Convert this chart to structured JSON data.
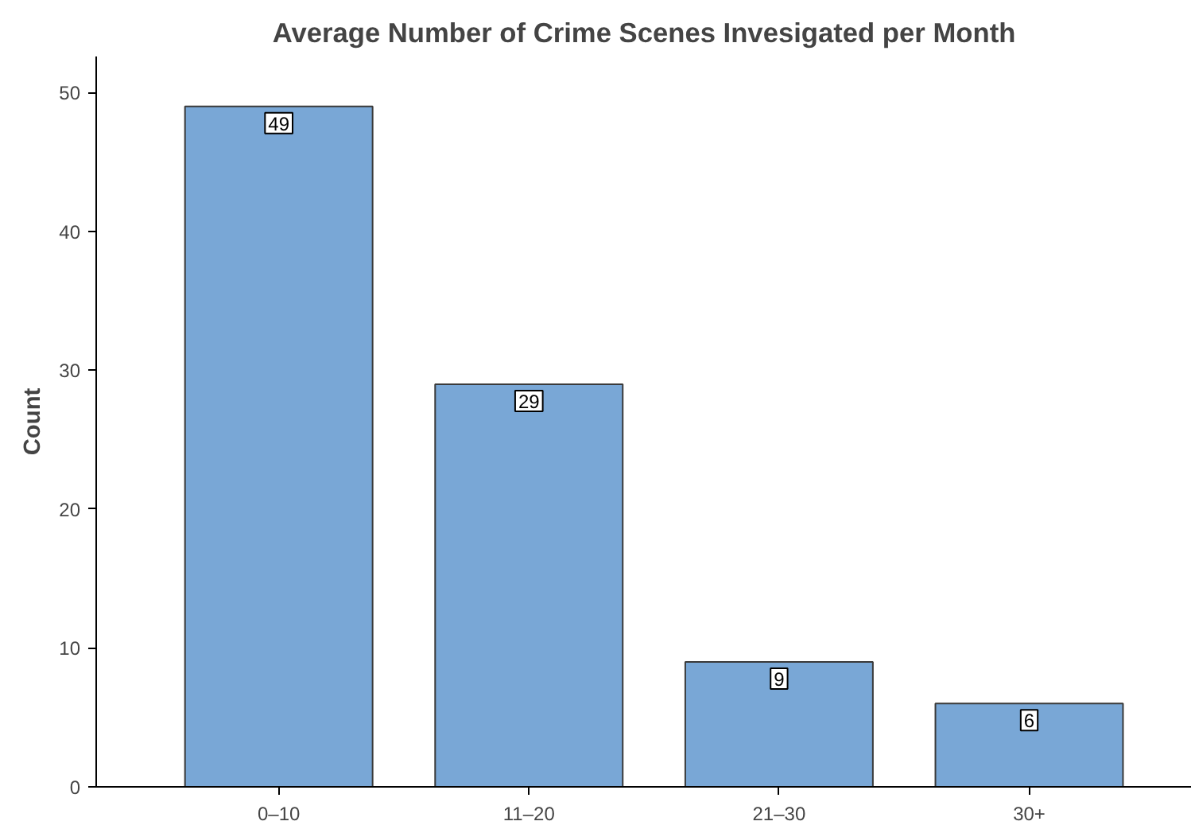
{
  "chart_data": {
    "type": "bar",
    "title": "Average Number of Crime Scenes Invesigated per Month",
    "ylabel": "Count",
    "categories": [
      "0–10",
      "11–20",
      "21–30",
      "30+"
    ],
    "values": [
      49,
      29,
      9,
      6
    ],
    "color": "#79a7d6",
    "ylim": [
      0,
      52.6
    ],
    "yticks": [
      0,
      10,
      20,
      30,
      40,
      50
    ],
    "grid": false,
    "data_labels": true
  }
}
